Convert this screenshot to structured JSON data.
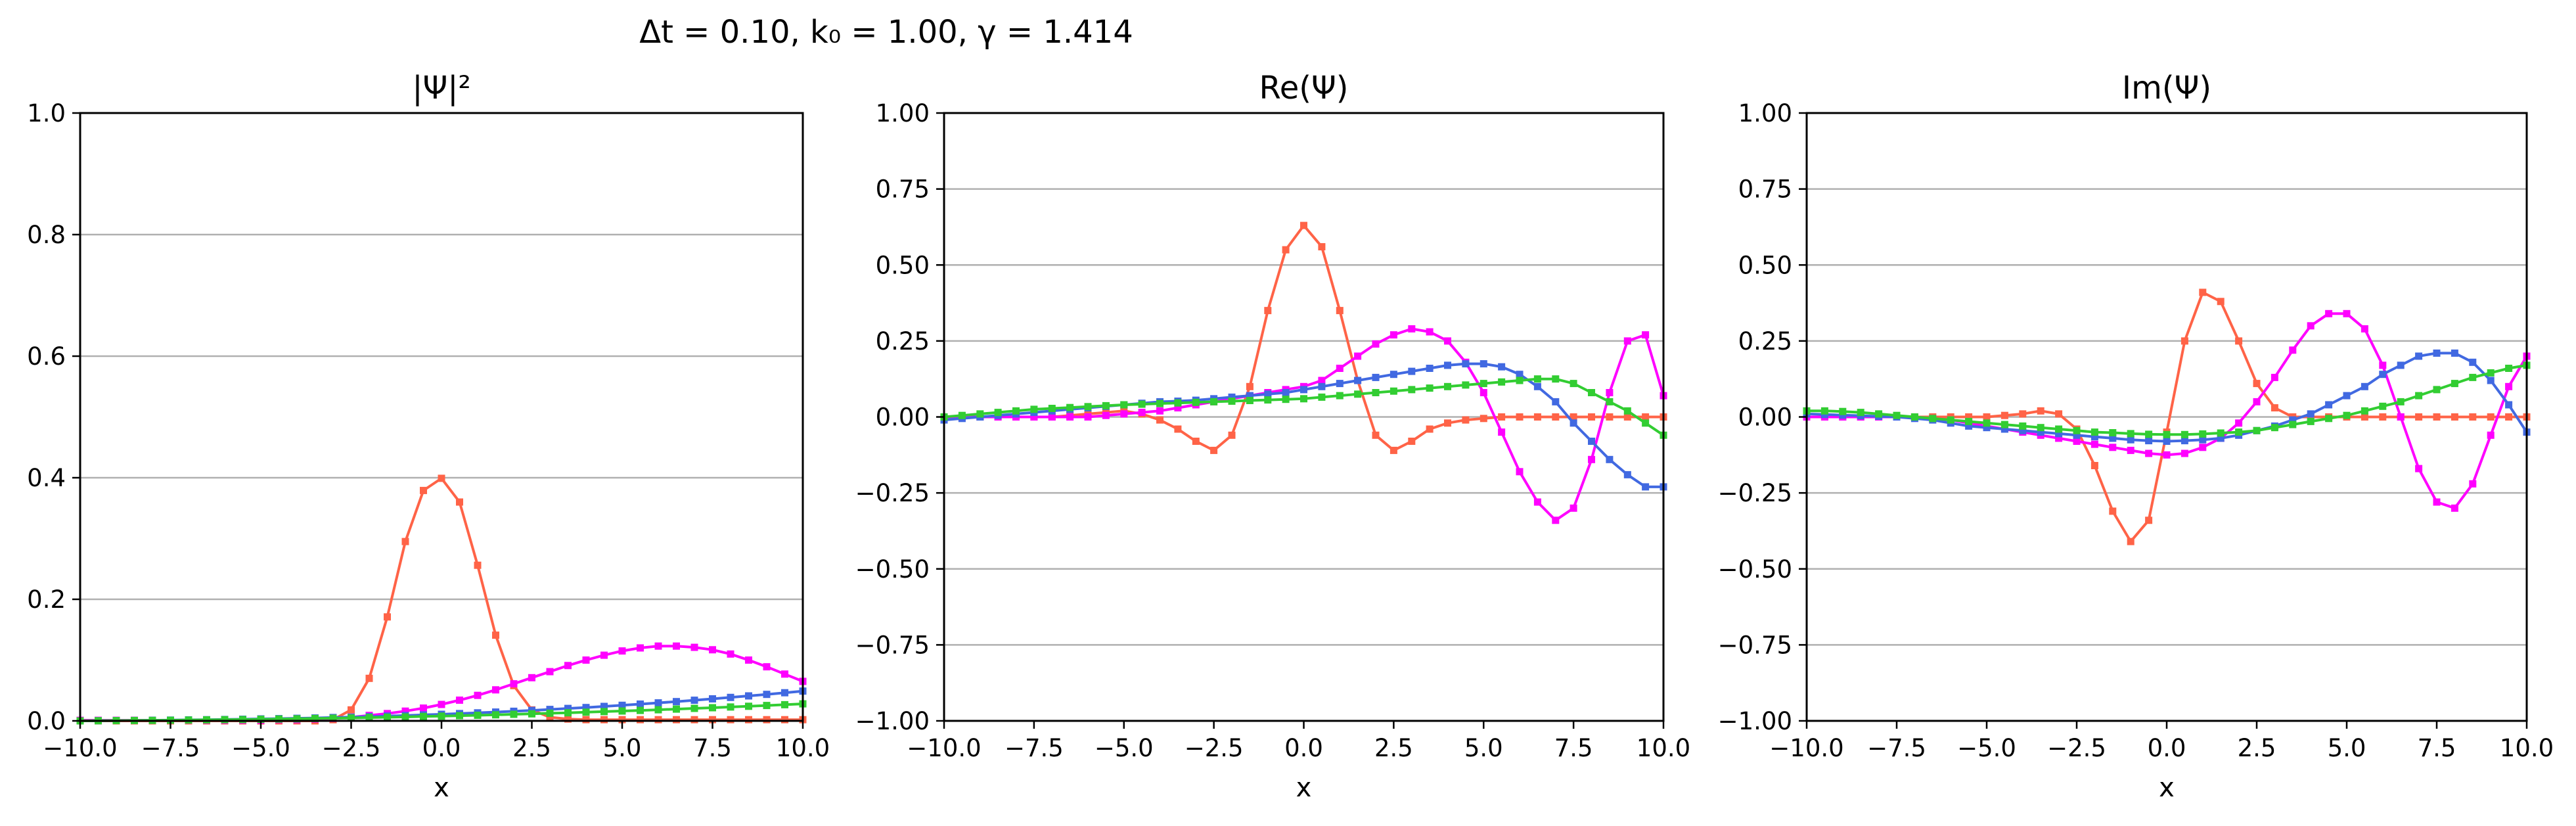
{
  "suptitle": "Δt = 0.10, k₀ = 1.00, γ = 1.414",
  "series_colors": [
    "#ff6347",
    "#ff00ff",
    "#4169e1",
    "#32cd32"
  ],
  "chart_data": [
    {
      "type": "line",
      "title": "|Ψ|²",
      "xlabel": "x",
      "ylabel": "",
      "xlim": [
        -10,
        10
      ],
      "ylim": [
        0,
        1
      ],
      "xticks": [
        -10,
        -7.5,
        -5,
        -2.5,
        0,
        2.5,
        5,
        7.5,
        10
      ],
      "xticklabels": [
        "−10.0",
        "−7.5",
        "−5.0",
        "−2.5",
        "0.0",
        "2.5",
        "5.0",
        "7.5",
        "10.0"
      ],
      "yticks": [
        0,
        0.2,
        0.4,
        0.6,
        0.8,
        1.0
      ],
      "yticklabels": [
        "0.0",
        "0.2",
        "0.4",
        "0.6",
        "0.8",
        "1.0"
      ],
      "grid": "horizontal",
      "x": [
        -10,
        -9.5,
        -9,
        -8.5,
        -8,
        -7.5,
        -7,
        -6.5,
        -6,
        -5.5,
        -5,
        -4.5,
        -4,
        -3.5,
        -3,
        -2.5,
        -2,
        -1.5,
        -1,
        -0.5,
        0,
        0.5,
        1,
        1.5,
        2,
        2.5,
        3,
        3.5,
        4,
        4.5,
        5,
        5.5,
        6,
        6.5,
        7,
        7.5,
        8,
        8.5,
        9,
        9.5,
        10
      ],
      "series": [
        {
          "values": [
            0,
            0,
            0,
            0,
            0,
            0,
            0,
            0,
            0,
            0,
            0,
            0,
            0,
            0,
            0.002,
            0.018,
            0.07,
            0.171,
            0.295,
            0.379,
            0.399,
            0.36,
            0.256,
            0.141,
            0.058,
            0.018,
            0.006,
            0.003,
            0.002,
            0.002,
            0.002,
            0.002,
            0.002,
            0.002,
            0.002,
            0.002,
            0.002,
            0.002,
            0.002,
            0.002,
            0.002
          ]
        },
        {
          "values": [
            0.001,
            0.001,
            0.001,
            0.001,
            0.001,
            0.001,
            0.001,
            0.001,
            0.001,
            0.001,
            0.001,
            0.002,
            0.002,
            0.003,
            0.004,
            0.006,
            0.009,
            0.012,
            0.016,
            0.021,
            0.027,
            0.034,
            0.042,
            0.051,
            0.061,
            0.071,
            0.081,
            0.091,
            0.1,
            0.108,
            0.115,
            0.12,
            0.123,
            0.123,
            0.121,
            0.117,
            0.11,
            0.1,
            0.089,
            0.077,
            0.065
          ]
        },
        {
          "values": [
            0,
            0.0003,
            0.0005,
            0.0007,
            0.001,
            0.0013,
            0.0016,
            0.0019,
            0.0023,
            0.0027,
            0.0032,
            0.0037,
            0.0042,
            0.0048,
            0.0055,
            0.0062,
            0.007,
            0.0079,
            0.0088,
            0.0098,
            0.0108,
            0.012,
            0.0132,
            0.0145,
            0.0158,
            0.0172,
            0.0188,
            0.0204,
            0.022,
            0.0238,
            0.0256,
            0.0276,
            0.0296,
            0.0317,
            0.0339,
            0.0362,
            0.0386,
            0.0411,
            0.0436,
            0.0463,
            0.049
          ]
        },
        {
          "values": [
            0,
            0.0002,
            0.0004,
            0.0006,
            0.0008,
            0.001,
            0.0013,
            0.0016,
            0.0019,
            0.0022,
            0.0026,
            0.003,
            0.0034,
            0.0039,
            0.0043,
            0.0048,
            0.0054,
            0.0059,
            0.0065,
            0.0072,
            0.0078,
            0.0085,
            0.0092,
            0.01,
            0.0108,
            0.0116,
            0.0125,
            0.0133,
            0.0143,
            0.0152,
            0.0162,
            0.0172,
            0.0183,
            0.0194,
            0.0205,
            0.0216,
            0.0228,
            0.024,
            0.0253,
            0.0266,
            0.028
          ]
        }
      ]
    },
    {
      "type": "line",
      "title": "Re(Ψ)",
      "xlabel": "x",
      "ylabel": "",
      "xlim": [
        -10,
        10
      ],
      "ylim": [
        -1,
        1
      ],
      "xticks": [
        -10,
        -7.5,
        -5,
        -2.5,
        0,
        2.5,
        5,
        7.5,
        10
      ],
      "xticklabels": [
        "−10.0",
        "−7.5",
        "−5.0",
        "−2.5",
        "0.0",
        "2.5",
        "5.0",
        "7.5",
        "10.0"
      ],
      "yticks": [
        -1,
        -0.75,
        -0.5,
        -0.25,
        0,
        0.25,
        0.5,
        0.75,
        1
      ],
      "yticklabels": [
        "−1.00",
        "−0.75",
        "−0.50",
        "−0.25",
        "0.00",
        "0.25",
        "0.50",
        "0.75",
        "1.00"
      ],
      "grid": "horizontal",
      "x": [
        -10,
        -9.5,
        -9,
        -8.5,
        -8,
        -7.5,
        -7,
        -6.5,
        -6,
        -5.5,
        -5,
        -4.5,
        -4,
        -3.5,
        -3,
        -2.5,
        -2,
        -1.5,
        -1,
        -0.5,
        0,
        0.5,
        1,
        1.5,
        2,
        2.5,
        3,
        3.5,
        4,
        4.5,
        5,
        5.5,
        6,
        6.5,
        7,
        7.5,
        8,
        8.5,
        9,
        9.5,
        10
      ],
      "series": [
        {
          "values": [
            0,
            0,
            0,
            0,
            0,
            0,
            0,
            0.005,
            0.01,
            0.015,
            0.02,
            0.01,
            -0.01,
            -0.04,
            -0.08,
            -0.11,
            -0.06,
            0.1,
            0.35,
            0.55,
            0.63,
            0.56,
            0.35,
            0.12,
            -0.06,
            -0.11,
            -0.08,
            -0.04,
            -0.02,
            -0.01,
            -0.005,
            0,
            0,
            0,
            0,
            0,
            0,
            0,
            0,
            0,
            0
          ]
        },
        {
          "values": [
            0,
            0,
            0,
            0,
            0,
            0,
            0,
            0,
            0,
            0.005,
            0.01,
            0.015,
            0.02,
            0.03,
            0.04,
            0.05,
            0.06,
            0.07,
            0.08,
            0.09,
            0.1,
            0.12,
            0.16,
            0.2,
            0.24,
            0.27,
            0.29,
            0.28,
            0.25,
            0.18,
            0.08,
            -0.05,
            -0.18,
            -0.28,
            -0.34,
            -0.3,
            -0.14,
            0.08,
            0.25,
            0.27,
            0.07
          ]
        },
        {
          "values": [
            -0.01,
            -0.005,
            0,
            0.005,
            0.01,
            0.015,
            0.02,
            0.025,
            0.03,
            0.035,
            0.04,
            0.045,
            0.05,
            0.052,
            0.055,
            0.06,
            0.065,
            0.07,
            0.075,
            0.08,
            0.09,
            0.1,
            0.11,
            0.12,
            0.13,
            0.14,
            0.15,
            0.16,
            0.17,
            0.175,
            0.175,
            0.165,
            0.14,
            0.1,
            0.05,
            -0.02,
            -0.08,
            -0.14,
            -0.19,
            -0.23,
            -0.23
          ]
        },
        {
          "values": [
            0,
            0.005,
            0.01,
            0.015,
            0.02,
            0.025,
            0.028,
            0.031,
            0.034,
            0.037,
            0.04,
            0.042,
            0.044,
            0.046,
            0.048,
            0.05,
            0.052,
            0.054,
            0.056,
            0.058,
            0.06,
            0.065,
            0.07,
            0.075,
            0.08,
            0.085,
            0.09,
            0.095,
            0.1,
            0.105,
            0.11,
            0.115,
            0.12,
            0.125,
            0.125,
            0.11,
            0.08,
            0.05,
            0.02,
            -0.02,
            -0.06
          ]
        }
      ]
    },
    {
      "type": "line",
      "title": "Im(Ψ)",
      "xlabel": "x",
      "ylabel": "",
      "xlim": [
        -10,
        10
      ],
      "ylim": [
        -1,
        1
      ],
      "xticks": [
        -10,
        -7.5,
        -5,
        -2.5,
        0,
        2.5,
        5,
        7.5,
        10
      ],
      "xticklabels": [
        "−10.0",
        "−7.5",
        "−5.0",
        "−2.5",
        "0.0",
        "2.5",
        "5.0",
        "7.5",
        "10.0"
      ],
      "yticks": [
        -1,
        -0.75,
        -0.5,
        -0.25,
        0,
        0.25,
        0.5,
        0.75,
        1
      ],
      "yticklabels": [
        "−1.00",
        "−0.75",
        "−0.50",
        "−0.25",
        "0.00",
        "0.25",
        "0.50",
        "0.75",
        "1.00"
      ],
      "grid": "horizontal",
      "x": [
        -10,
        -9.5,
        -9,
        -8.5,
        -8,
        -7.5,
        -7,
        -6.5,
        -6,
        -5.5,
        -5,
        -4.5,
        -4,
        -3.5,
        -3,
        -2.5,
        -2,
        -1.5,
        -1,
        -0.5,
        0,
        0.5,
        1,
        1.5,
        2,
        2.5,
        3,
        3.5,
        4,
        4.5,
        5,
        5.5,
        6,
        6.5,
        7,
        7.5,
        8,
        8.5,
        9,
        9.5,
        10
      ],
      "series": [
        {
          "values": [
            0,
            0,
            0,
            0,
            0,
            0,
            0,
            0,
            0,
            0,
            0,
            0.005,
            0.01,
            0.02,
            0.01,
            -0.04,
            -0.16,
            -0.31,
            -0.41,
            -0.34,
            -0.05,
            0.25,
            0.41,
            0.38,
            0.25,
            0.11,
            0.03,
            0,
            0,
            0,
            0,
            0,
            0,
            0,
            0,
            0,
            0,
            0,
            0,
            0,
            0
          ]
        },
        {
          "values": [
            0,
            0,
            0,
            0,
            0,
            0,
            0,
            -0.005,
            -0.01,
            -0.02,
            -0.03,
            -0.04,
            -0.05,
            -0.06,
            -0.07,
            -0.08,
            -0.09,
            -0.1,
            -0.11,
            -0.12,
            -0.125,
            -0.12,
            -0.1,
            -0.07,
            -0.02,
            0.05,
            0.13,
            0.22,
            0.3,
            0.34,
            0.34,
            0.29,
            0.17,
            0.0,
            -0.17,
            -0.28,
            -0.3,
            -0.22,
            -0.06,
            0.1,
            0.2
          ]
        },
        {
          "values": [
            0.01,
            0.008,
            0.006,
            0.004,
            0.002,
            0,
            -0.005,
            -0.01,
            -0.02,
            -0.03,
            -0.035,
            -0.04,
            -0.045,
            -0.05,
            -0.055,
            -0.06,
            -0.065,
            -0.07,
            -0.075,
            -0.078,
            -0.08,
            -0.078,
            -0.075,
            -0.07,
            -0.06,
            -0.045,
            -0.03,
            -0.01,
            0.01,
            0.04,
            0.07,
            0.1,
            0.14,
            0.17,
            0.2,
            0.21,
            0.21,
            0.18,
            0.12,
            0.04,
            -0.05
          ]
        },
        {
          "values": [
            0.02,
            0.02,
            0.018,
            0.015,
            0.01,
            0.005,
            0,
            -0.005,
            -0.01,
            -0.015,
            -0.02,
            -0.025,
            -0.03,
            -0.035,
            -0.04,
            -0.045,
            -0.05,
            -0.052,
            -0.055,
            -0.057,
            -0.058,
            -0.058,
            -0.056,
            -0.053,
            -0.05,
            -0.045,
            -0.035,
            -0.025,
            -0.015,
            -0.005,
            0.005,
            0.02,
            0.035,
            0.05,
            0.07,
            0.09,
            0.11,
            0.13,
            0.145,
            0.16,
            0.17
          ]
        }
      ]
    }
  ]
}
